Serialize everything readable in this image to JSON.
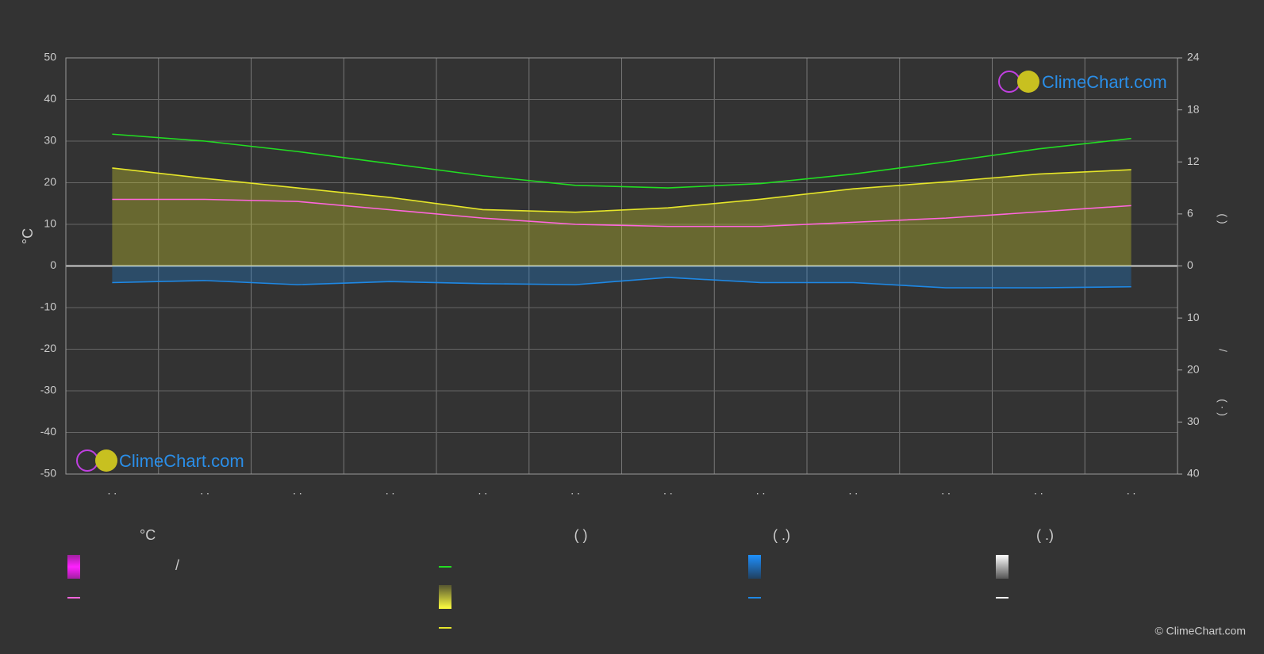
{
  "chart_data": {
    "type": "line",
    "ylabel": "°C",
    "y2label": "(          )",
    "y3label_top": "/",
    "y3label_bottom": "(  ·   )",
    "categories": [
      ". .",
      ". .",
      ". .",
      ". .",
      ". .",
      ". .",
      ". .",
      ". .",
      ". .",
      ". .",
      ". .",
      ". ."
    ],
    "ylim": [
      -50,
      50
    ],
    "yticks": [
      -50,
      -40,
      -30,
      -20,
      -10,
      0,
      10,
      20,
      30,
      40,
      50
    ],
    "y2lim": [
      0,
      24
    ],
    "y2ticks": [
      0,
      6,
      12,
      18,
      24
    ],
    "y3lim": [
      0,
      40
    ],
    "y3ticks": [
      10,
      20,
      30,
      40
    ],
    "grid": true,
    "series": [
      {
        "color": "#22dd22",
        "axis": "y2",
        "values": [
          15.2,
          14.4,
          13.2,
          11.8,
          10.4,
          9.3,
          9.0,
          9.5,
          10.6,
          12.0,
          13.5,
          14.7
        ]
      },
      {
        "color": "#e6e62a",
        "axis": "y2",
        "area": true,
        "values": [
          11.3,
          10.1,
          9.0,
          7.9,
          6.5,
          6.2,
          6.7,
          7.7,
          8.9,
          9.7,
          10.6,
          11.1
        ]
      },
      {
        "color": "#ff66dd",
        "axis": "y",
        "values": [
          16,
          16,
          15.5,
          13.5,
          11.5,
          10,
          9.5,
          9.5,
          10.5,
          11.5,
          13,
          14.5
        ]
      },
      {
        "color": "#1e88e5",
        "axis": "y3",
        "area": true,
        "values": [
          3.2,
          2.8,
          3.6,
          3.0,
          3.4,
          3.6,
          2.2,
          3.2,
          3.2,
          4.2,
          4.2,
          4.0
        ]
      }
    ],
    "legend_headers": [
      "°C",
      "(          )",
      "(   .)",
      "(   .)"
    ],
    "legend_slash": "/",
    "watermark": "ClimeChart.com",
    "copyright": "© ClimeChart.com"
  }
}
